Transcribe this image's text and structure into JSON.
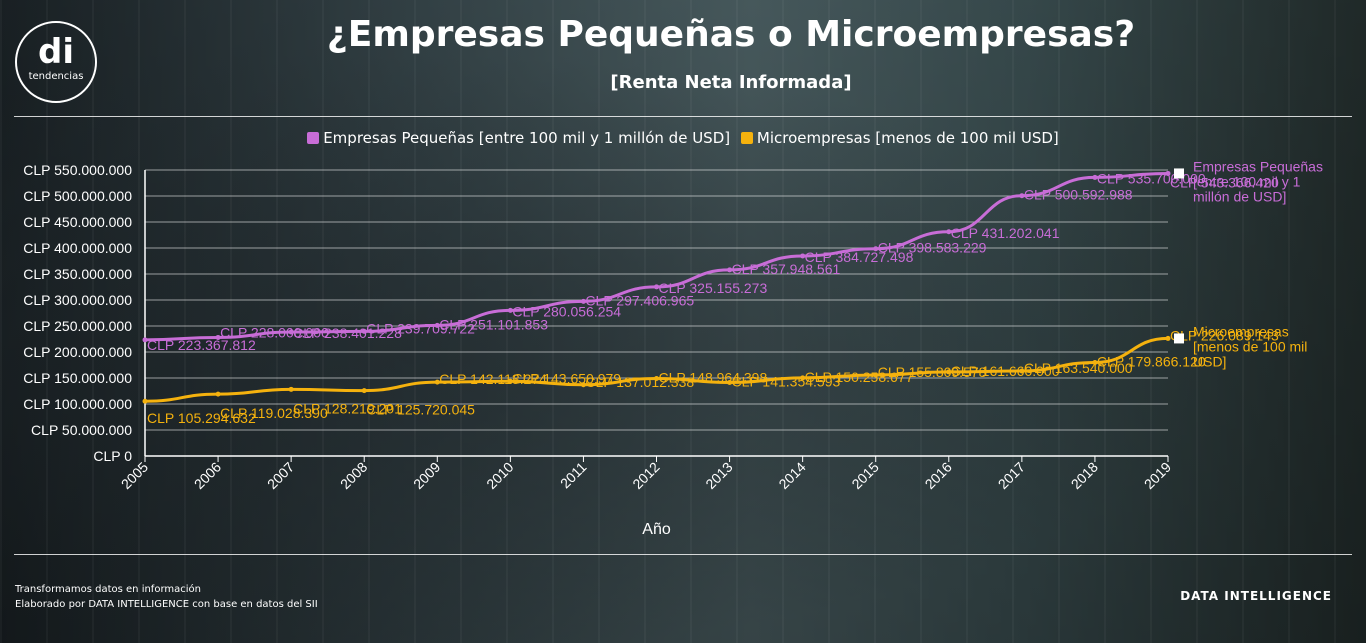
{
  "header": {
    "logo_mark": "di",
    "logo_text": "tendencias",
    "title": "¿Empresas Pequeñas o Microempresas?",
    "subtitle": "[Renta Neta Informada]"
  },
  "footer": {
    "line1": "Transformamos datos en información",
    "line2": "Elaborado por DATA INTELLIGENCE con base en datos del SII",
    "brand": "DATA INTELLIGENCE"
  },
  "chart_data": {
    "type": "line",
    "xlabel": "Año",
    "ylabel": "",
    "x": [
      "2005",
      "2006",
      "2007",
      "2008",
      "2009",
      "2010",
      "2011",
      "2012",
      "2013",
      "2014",
      "2015",
      "2016",
      "2017",
      "2018",
      "2019"
    ],
    "ylim": [
      0,
      550000000
    ],
    "yticks": [
      0,
      50000000,
      100000000,
      150000000,
      200000000,
      250000000,
      300000000,
      350000000,
      400000000,
      450000000,
      500000000,
      550000000
    ],
    "ytick_labels": [
      "CLP 0",
      "CLP 50.000.000",
      "CLP 100.000.000",
      "CLP 150.000.000",
      "CLP 200.000.000",
      "CLP 250.000.000",
      "CLP 300.000.000",
      "CLP 350.000.000",
      "CLP 400.000.000",
      "CLP 450.000.000",
      "CLP 500.000.000",
      "CLP 550.000.000"
    ],
    "grid": true,
    "legend_position": "top",
    "series": [
      {
        "name": "Empresas Pequeñas [entre 100 mil y 1 millón de USD]",
        "end_label": [
          "Empresas Pequeñas",
          "[entre 100 mil y 1",
          "millón de USD]"
        ],
        "color": "#c86dd7",
        "values": [
          223367812,
          228000000,
          238401228,
          239709722,
          251101853,
          280056254,
          297406965,
          325155273,
          357948561,
          384727498,
          398583229,
          431202041,
          500592988,
          535700000,
          543366420
        ],
        "labels": [
          "CLP 223.367.812",
          "CLP 228.000.000",
          "CLP 238.401.228",
          "CLP 239.709.722",
          "CLP 251.101.853",
          "CLP 280.056.254",
          "CLP 297.406.965",
          "CLP 325.155.273",
          "CLP 357.948.561",
          "CLP 384.727.498",
          "CLP 398.583.229",
          "CLP 431.202.041",
          "CLP 500.592.988",
          "CLP 535.700.000",
          "CLP 543.366.420"
        ]
      },
      {
        "name": "Microempresas [menos de 100 mil USD]",
        "end_label": [
          "Microempresas",
          "[menos de 100 mil",
          "USD]"
        ],
        "color": "#f5b20e",
        "values": [
          105294632,
          119028390,
          128219201,
          125720045,
          142113274,
          143650979,
          137012338,
          148964398,
          141354593,
          150258677,
          155809578,
          161660000,
          163540000,
          179866120,
          226089143
        ],
        "labels": [
          "CLP 105.294.632",
          "CLP 119.028.390",
          "CLP 128.219.201",
          "CLP 125.720.045",
          "CLP 142.113.274",
          "CLP 143.650.979",
          "CLP 137.012.338",
          "CLP 148.964.398",
          "CLP 141.354.593",
          "CLP 150.258.677",
          "CLP 155.809.578",
          "CLP 161.660.000",
          "CLP 163.540.000",
          "CLP 179.866.120",
          "CLP 226.089.143"
        ]
      }
    ]
  }
}
